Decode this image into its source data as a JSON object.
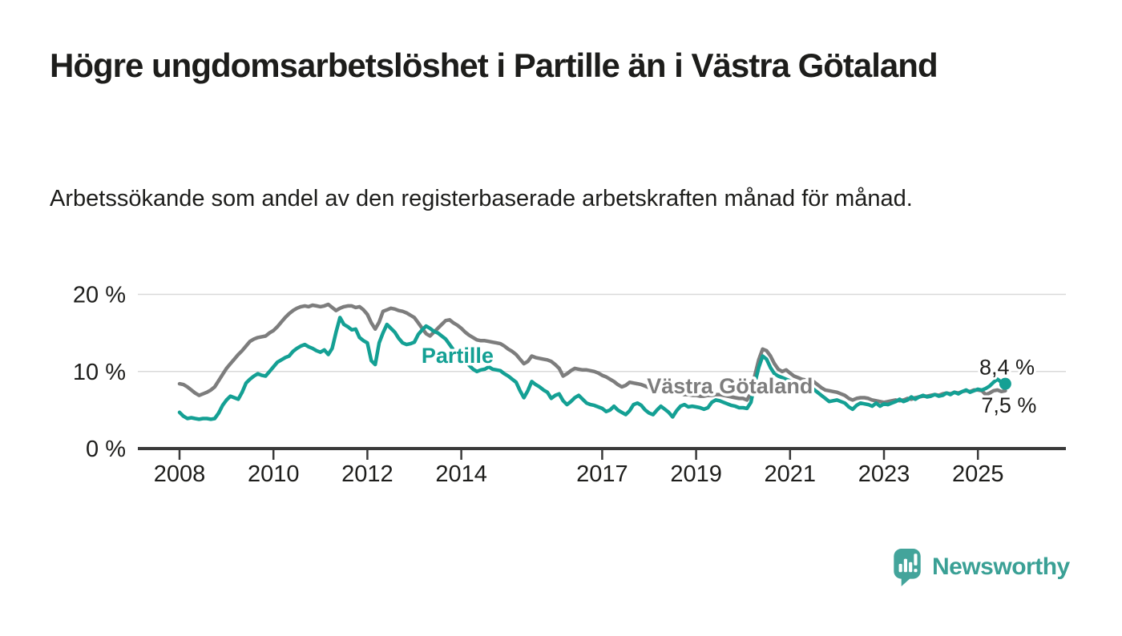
{
  "title": "Högre ungdomsarbetslöshet i Partille än i Västra Götaland",
  "subtitle": "Arbetssökande som andel av den registerbaserade arbetskraften månad för månad.",
  "branding": {
    "logo_text": "Newsworthy",
    "logo_icon": "speech-bubble-bar-chart-icon"
  },
  "colors": {
    "partille": "#14a094",
    "vastra_gotaland": "#7d7d7d",
    "text": "#1d1d1b",
    "axis": "#3a3a3a",
    "gridline": "#d9d9d9",
    "background": "#ffffff",
    "logo": "#43a49b"
  },
  "chart_data": {
    "type": "line",
    "unit": "%",
    "grid": "horizontal",
    "xlim": [
      2007.1,
      2026.9
    ],
    "ylim": [
      0,
      20.8
    ],
    "x_ticks": [
      2008,
      2010,
      2012,
      2014,
      2017,
      2019,
      2021,
      2023,
      2025
    ],
    "x_tick_labels": [
      "2008",
      "2010",
      "2012",
      "2014",
      "2017",
      "2019",
      "2021",
      "2023",
      "2025"
    ],
    "y_ticks": [
      {
        "value": 0,
        "label": "0 %"
      },
      {
        "value": 10,
        "label": "10 %"
      },
      {
        "value": 20,
        "label": "20 %"
      }
    ],
    "frequency": "monthly",
    "series": [
      {
        "name": "Västra Götaland",
        "color_key": "vastra_gotaland",
        "start_year": 2008,
        "end_label": "7,5 %",
        "end_marker": false,
        "inline_label": {
          "t": 2019.72,
          "v": 8.1
        },
        "end_label_anchor": {
          "t": 2025.66,
          "v": 5.6
        },
        "values": [
          8.4,
          8.3,
          8.0,
          7.6,
          7.2,
          6.9,
          7.1,
          7.3,
          7.6,
          8.0,
          8.8,
          9.6,
          10.4,
          11.0,
          11.6,
          12.2,
          12.7,
          13.3,
          13.9,
          14.2,
          14.4,
          14.5,
          14.6,
          15.0,
          15.3,
          15.8,
          16.4,
          17.0,
          17.5,
          17.9,
          18.2,
          18.4,
          18.5,
          18.4,
          18.6,
          18.5,
          18.4,
          18.5,
          18.7,
          18.3,
          17.9,
          18.2,
          18.4,
          18.5,
          18.5,
          18.3,
          18.4,
          18.0,
          17.4,
          16.3,
          15.5,
          16.4,
          17.8,
          18.0,
          18.2,
          18.1,
          17.9,
          17.8,
          17.6,
          17.3,
          17.0,
          16.3,
          15.6,
          14.9,
          14.6,
          15.1,
          15.6,
          16.1,
          16.6,
          16.7,
          16.3,
          16.0,
          15.6,
          15.1,
          14.7,
          14.4,
          14.1,
          14.0,
          14.0,
          13.9,
          13.8,
          13.7,
          13.6,
          13.3,
          12.9,
          12.6,
          12.2,
          11.6,
          11.0,
          11.3,
          12.0,
          11.8,
          11.7,
          11.6,
          11.5,
          11.3,
          10.9,
          10.4,
          9.4,
          9.7,
          10.1,
          10.4,
          10.3,
          10.2,
          10.2,
          10.1,
          10.0,
          9.8,
          9.5,
          9.3,
          9.0,
          8.7,
          8.3,
          8.0,
          8.2,
          8.6,
          8.5,
          8.4,
          8.3,
          8.1,
          7.9,
          7.8,
          7.6,
          7.5,
          7.4,
          7.3,
          7.2,
          7.1,
          7.1,
          7.0,
          7.0,
          6.9,
          6.9,
          6.8,
          6.8,
          6.9,
          6.9,
          7.0,
          7.0,
          6.9,
          6.8,
          6.7,
          6.6,
          6.5,
          6.5,
          6.3,
          7.2,
          9.5,
          11.5,
          12.9,
          12.7,
          12.0,
          11.0,
          10.3,
          10.0,
          10.2,
          9.8,
          9.4,
          9.2,
          9.0,
          8.9,
          8.9,
          8.7,
          8.3,
          7.9,
          7.6,
          7.5,
          7.4,
          7.3,
          7.1,
          6.9,
          6.5,
          6.3,
          6.5,
          6.6,
          6.6,
          6.5,
          6.3,
          6.2,
          6.1,
          6.0,
          6.1,
          6.2,
          6.3,
          6.2,
          6.3,
          6.5,
          6.4,
          6.6,
          6.7,
          6.8,
          6.8,
          6.9,
          7.0,
          6.9,
          7.1,
          7.2,
          7.1,
          7.3,
          7.2,
          7.4,
          7.5,
          7.4,
          7.6,
          7.6,
          7.5,
          7.0,
          7.2,
          7.5,
          7.6,
          7.4,
          7.5
        ]
      },
      {
        "name": "Partille",
        "color_key": "partille",
        "start_year": 2008,
        "end_label": "8,4 %",
        "end_marker": true,
        "inline_label": {
          "t": 2013.92,
          "v": 12.05
        },
        "end_label_anchor": {
          "t": 2025.62,
          "v": 10.55
        },
        "values": [
          4.7,
          4.2,
          3.9,
          4.0,
          3.9,
          3.8,
          3.9,
          3.9,
          3.8,
          3.9,
          4.6,
          5.6,
          6.3,
          6.8,
          6.6,
          6.4,
          7.3,
          8.5,
          9.0,
          9.4,
          9.7,
          9.5,
          9.4,
          10.0,
          10.6,
          11.2,
          11.5,
          11.8,
          12.0,
          12.6,
          13.0,
          13.3,
          13.5,
          13.2,
          13.0,
          12.7,
          12.5,
          12.8,
          12.2,
          13.0,
          15.1,
          17.0,
          16.1,
          15.8,
          15.4,
          15.5,
          14.4,
          14.0,
          13.7,
          11.4,
          10.9,
          13.7,
          15.0,
          16.1,
          15.6,
          15.1,
          14.3,
          13.7,
          13.5,
          13.6,
          13.8,
          14.8,
          15.4,
          15.9,
          15.6,
          15.2,
          15.0,
          14.6,
          14.2,
          13.5,
          12.8,
          12.4,
          12.0,
          11.4,
          10.8,
          10.3,
          10.0,
          10.2,
          10.3,
          10.6,
          10.3,
          10.2,
          10.1,
          9.7,
          9.4,
          9.0,
          8.6,
          7.5,
          6.6,
          7.5,
          8.7,
          8.3,
          8.0,
          7.6,
          7.3,
          6.5,
          6.9,
          7.1,
          6.2,
          5.7,
          6.1,
          6.6,
          6.9,
          6.4,
          5.9,
          5.7,
          5.6,
          5.4,
          5.2,
          4.8,
          5.0,
          5.5,
          5.0,
          4.7,
          4.4,
          4.9,
          5.7,
          5.9,
          5.6,
          5.0,
          4.6,
          4.4,
          5.0,
          5.5,
          5.1,
          4.7,
          4.1,
          4.9,
          5.5,
          5.7,
          5.4,
          5.5,
          5.4,
          5.3,
          5.1,
          5.3,
          6.0,
          6.3,
          6.2,
          6.0,
          5.8,
          5.6,
          5.5,
          5.3,
          5.3,
          5.2,
          6.0,
          8.5,
          10.5,
          12.0,
          11.6,
          10.5,
          9.7,
          9.4,
          9.2,
          9.0,
          8.8,
          8.5,
          8.3,
          8.1,
          8.0,
          7.9,
          7.7,
          7.3,
          6.9,
          6.5,
          6.1,
          6.2,
          6.3,
          6.1,
          5.9,
          5.4,
          5.1,
          5.6,
          5.9,
          5.8,
          5.7,
          5.5,
          5.9,
          5.5,
          5.8,
          5.7,
          5.9,
          6.1,
          6.4,
          6.1,
          6.3,
          6.7,
          6.4,
          6.7,
          6.9,
          6.7,
          6.8,
          7.0,
          6.8,
          6.9,
          7.2,
          7.0,
          7.3,
          7.1,
          7.4,
          7.6,
          7.3,
          7.5,
          7.7,
          7.6,
          7.8,
          8.1,
          8.6,
          9.0,
          8.6,
          8.4
        ]
      }
    ]
  }
}
